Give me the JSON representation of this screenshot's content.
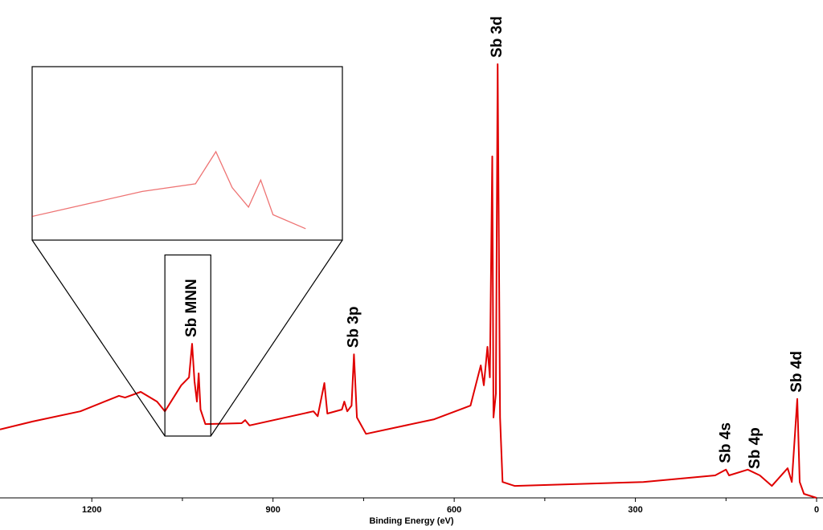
{
  "chart_data": {
    "type": "line",
    "x_label": "Binding Energy (eV)",
    "xlim": [
      1352,
      -10.6
    ],
    "ylim": [
      0,
      110
    ],
    "xticks": [
      1200,
      900,
      600,
      300,
      0
    ],
    "xminor": [
      1050,
      750,
      450,
      150
    ],
    "series": [
      {
        "color": "#e00000",
        "x": [
          1352,
          1298,
          1219,
          1155,
          1145,
          1119,
          1092,
          1079,
          1052,
          1039,
          1034,
          1030,
          1026,
          1023,
          1020,
          1012,
          952,
          946,
          939,
          833,
          826,
          815,
          810,
          786,
          782,
          777,
          770,
          766,
          761,
          746,
          633,
          573,
          556,
          551,
          545,
          541,
          537,
          535,
          531,
          528,
          524,
          520,
          500,
          287,
          168,
          150,
          145,
          114,
          94,
          74,
          48,
          41,
          32,
          28,
          21,
          0
        ],
        "values": [
          15.5,
          17.3,
          19.6,
          23.1,
          22.7,
          24.0,
          21.8,
          19.6,
          25.5,
          27.3,
          34.9,
          26.4,
          21.8,
          28.2,
          20.0,
          16.7,
          16.9,
          17.6,
          16.4,
          19.6,
          18.5,
          26.0,
          19.1,
          20.0,
          21.8,
          19.6,
          20.9,
          32.5,
          18.2,
          14.5,
          17.8,
          20.9,
          30.0,
          25.5,
          34.2,
          27.3,
          77.3,
          18.2,
          23.6,
          98.2,
          18.2,
          3.6,
          2.7,
          3.6,
          5.1,
          6.4,
          5.1,
          6.4,
          5.1,
          2.7,
          6.7,
          3.6,
          22.4,
          3.6,
          0.9,
          0
        ]
      }
    ],
    "annotations": [
      {
        "text": "Sb MNN",
        "x": 1034
      },
      {
        "text": "Sb 3p",
        "x": 766
      },
      {
        "text": "Sb 3d",
        "x": 528
      },
      {
        "text": "Sb 4s",
        "x": 150
      },
      {
        "text": "Sb 4p",
        "x": 101
      },
      {
        "text": "Sb 4d",
        "x": 32
      }
    ],
    "zoom": {
      "xlim": [
        1079,
        1003
      ],
      "ylim": [
        14,
        55
      ]
    }
  }
}
